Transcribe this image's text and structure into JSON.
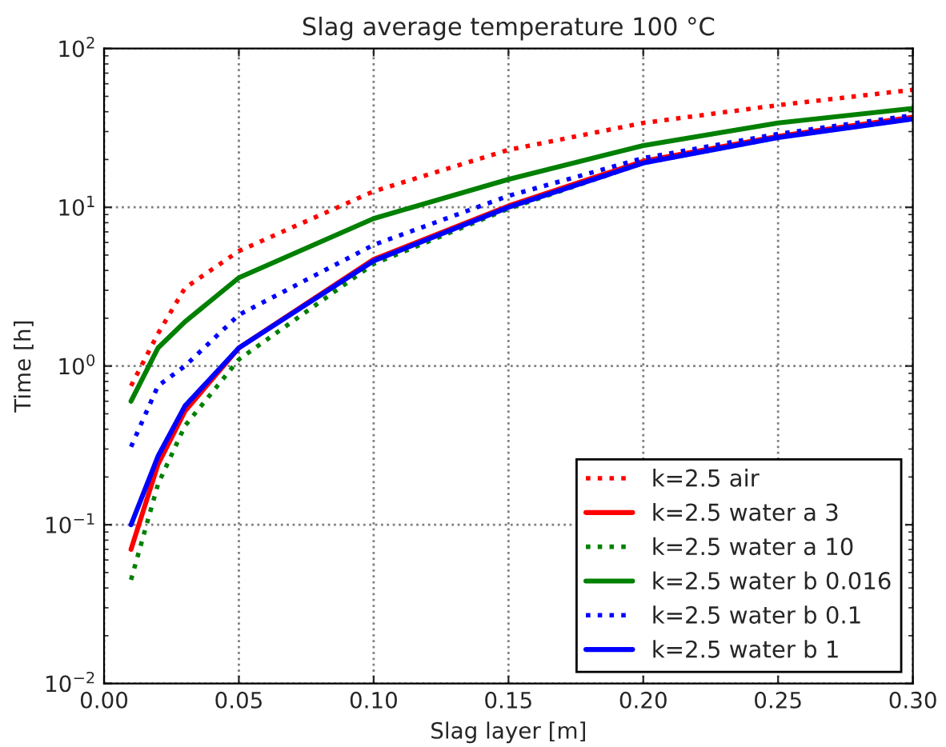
{
  "chart_data": {
    "type": "line",
    "title": "Slag average temperature 100 °C",
    "xlabel": "Slag layer [m]",
    "ylabel": "Time [h]",
    "x": [
      0.01,
      0.02,
      0.03,
      0.05,
      0.1,
      0.15,
      0.2,
      0.25,
      0.3
    ],
    "series": [
      {
        "name": "k=2.5 air",
        "color": "#ff0000",
        "line_style": "dotted",
        "values": [
          0.75,
          1.6,
          3.1,
          5.3,
          12.6,
          23,
          34,
          44,
          55
        ]
      },
      {
        "name": "k=2.5 water a 3",
        "color": "#ff0000",
        "line_style": "solid",
        "values": [
          0.07,
          0.24,
          0.52,
          1.3,
          4.7,
          10.2,
          19.5,
          28,
          37
        ]
      },
      {
        "name": "k=2.5 water a 10",
        "color": "#008000",
        "line_style": "dotted",
        "values": [
          0.045,
          0.18,
          0.42,
          1.1,
          4.4,
          9.8,
          19,
          27.5,
          36
        ]
      },
      {
        "name": "k=2.5 water b 0.016",
        "color": "#008000",
        "line_style": "solid",
        "values": [
          0.6,
          1.3,
          1.9,
          3.6,
          8.5,
          15,
          24.5,
          34,
          42
        ]
      },
      {
        "name": "k=2.5 water b 0.1",
        "color": "#0000ff",
        "line_style": "dotted",
        "values": [
          0.31,
          0.75,
          1.0,
          2.1,
          5.8,
          11.8,
          20.4,
          29,
          38
        ]
      },
      {
        "name": "k=2.5 water b 1",
        "color": "#0000ff",
        "line_style": "solid",
        "values": [
          0.1,
          0.27,
          0.56,
          1.3,
          4.6,
          10,
          19,
          27.5,
          36
        ]
      }
    ],
    "log": "y",
    "xlim": [
      0.0,
      0.3
    ],
    "ylim": [
      0.01,
      100
    ],
    "xticks": [
      {
        "value": 0.0,
        "label": "0.00"
      },
      {
        "value": 0.05,
        "label": "0.05"
      },
      {
        "value": 0.1,
        "label": "0.10"
      },
      {
        "value": 0.15,
        "label": "0.15"
      },
      {
        "value": 0.2,
        "label": "0.20"
      },
      {
        "value": 0.25,
        "label": "0.25"
      },
      {
        "value": 0.3,
        "label": "0.30"
      }
    ],
    "yticks": [
      {
        "value": 0.01,
        "label": "10$^{−2}$"
      },
      {
        "value": 0.1,
        "label": "10$^{−1}$"
      },
      {
        "value": 1,
        "label": "10$^{0}$"
      },
      {
        "value": 10,
        "label": "10$^{1}$"
      },
      {
        "value": 100,
        "label": "10$^{2}$"
      }
    ],
    "grid": true,
    "legend": "bottom right",
    "marker": "none"
  }
}
